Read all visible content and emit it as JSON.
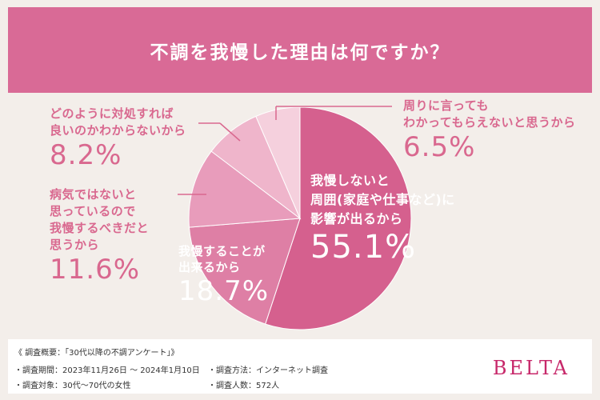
{
  "header": {
    "title": "不調を我慢した理由は何ですか？"
  },
  "chart_data": {
    "type": "pie",
    "title": "不調を我慢した理由は何ですか？",
    "start": "12 o'clock, clockwise",
    "slices": [
      {
        "label": "我慢しないと\n周囲(家庭や仕事など)に\n影響が出るから",
        "value": 55.1,
        "pct_label": "55.1%",
        "color": "#d5608e"
      },
      {
        "label": "我慢することが\n出来るから",
        "value": 18.7,
        "pct_label": "18.7%",
        "color": "#de7fa5"
      },
      {
        "label": "病気ではないと\n思っているので\n我慢するべきだと\n思うから",
        "value": 11.6,
        "pct_label": "11.6%",
        "color": "#e89cbb"
      },
      {
        "label": "どのように対処すれば\n良いのかわからないから",
        "value": 8.2,
        "pct_label": "8.2%",
        "color": "#efb5cb"
      },
      {
        "label": "周りに言っても\nわかってもらえないと思うから",
        "value": 6.5,
        "pct_label": "6.5%",
        "color": "#f5d0dd"
      }
    ]
  },
  "footer": {
    "overview": "《 調査概要：「30代以降の不調アンケート」》",
    "period": "・調査期間：2023年11月26日 ～ 2024年1月10日",
    "target": "・調査対象：30代～70代の女性",
    "method": "・調査方法：インターネット調査",
    "count": "・調査人数：572人",
    "brand": "BELTA"
  }
}
